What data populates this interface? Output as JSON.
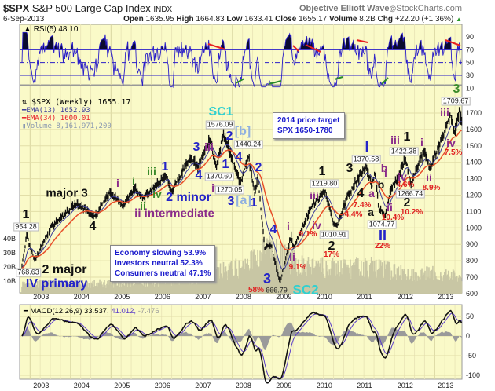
{
  "header": {
    "symbol": "$SPX",
    "name": "S&P 500 Large Cap Index",
    "exchange": "INDX",
    "brand": "Objective Elliott Wave",
    "brand_sep": "@",
    "site": "StockCharts.com",
    "date": "6-Sep-2013",
    "open_label": "Open",
    "open": "1635.95",
    "high_label": "High",
    "high": "1664.83",
    "low_label": "Low",
    "low": "1633.41",
    "close_label": "Close",
    "close": "1655.17",
    "volume_label": "Volume",
    "volume": "8.2B",
    "chg_label": "Chg",
    "chg": "+22.20 (+1.36%)",
    "chg_arrow": "▲"
  },
  "colors": {
    "panel_bg": "#fafac8",
    "price": "#111111",
    "ema13": "#3b3b9a",
    "ema34": "#e8502a",
    "rsi": "#2a1ec8",
    "volume": "#c8c6a4",
    "macd": "#111111",
    "signal": "#5a3cc8",
    "histogram": "#9a9a9a",
    "up": "#2a9a2a"
  },
  "chart_data": [
    {
      "type": "line",
      "panel": "RSI",
      "legend": "RSI(5) 48.10",
      "yticks": [
        90,
        70,
        50,
        30,
        10
      ],
      "ylim": [
        10,
        100
      ],
      "reference_lines": [
        70,
        50,
        30
      ]
    },
    {
      "type": "line",
      "panel": "price",
      "legend": {
        "price": "$SPX (Weekly) 1655.17",
        "ema13": "EMA(13) 1652.93",
        "ema34": "EMA(34) 1600.01",
        "volume": "Volume 8,161,971,200"
      },
      "yticks": [
        1700,
        1600,
        1500,
        1400,
        1300,
        1200,
        1100,
        1000,
        900,
        800,
        700,
        600
      ],
      "ylim": [
        600,
        1780
      ],
      "volume_ticks": [
        "40B",
        "30B",
        "20B",
        "10B"
      ],
      "xticks": [
        "2003",
        "2004",
        "2005",
        "2006",
        "2007",
        "2008",
        "2009",
        "2010",
        "2011",
        "2012",
        "2013"
      ],
      "price_pivots": [
        [
          2002.78,
          800
        ],
        [
          2002.8,
          768.63
        ],
        [
          2002.92,
          954.28
        ],
        [
          2003.0,
          880
        ],
        [
          2003.12,
          800
        ],
        [
          2003.5,
          1000
        ],
        [
          2003.9,
          1090
        ],
        [
          2004.15,
          1150
        ],
        [
          2004.6,
          1065
        ],
        [
          2004.95,
          1215
        ],
        [
          2005.3,
          1140
        ],
        [
          2005.6,
          1240
        ],
        [
          2005.8,
          1180
        ],
        [
          2006.35,
          1320
        ],
        [
          2006.5,
          1225
        ],
        [
          2006.95,
          1420
        ],
        [
          2007.15,
          1380
        ],
        [
          2007.45,
          1540
        ],
        [
          2007.6,
          1370.6
        ],
        [
          2007.78,
          1576.09
        ],
        [
          2008.2,
          1270.05
        ],
        [
          2008.4,
          1440.24
        ],
        [
          2008.55,
          1200
        ],
        [
          2008.63,
          1300
        ],
        [
          2008.8,
          880
        ],
        [
          2008.95,
          900
        ],
        [
          2009.18,
          666.79
        ],
        [
          2009.45,
          950
        ],
        [
          2009.52,
          880
        ],
        [
          2009.95,
          1130
        ],
        [
          2010.3,
          1219.8
        ],
        [
          2010.5,
          1030
        ],
        [
          2010.6,
          1010.91
        ],
        [
          2010.85,
          1200
        ],
        [
          2011.3,
          1370.58
        ],
        [
          2011.45,
          1260
        ],
        [
          2011.52,
          1340
        ],
        [
          2011.62,
          1120
        ],
        [
          2011.78,
          1074.77
        ],
        [
          2011.9,
          1230
        ],
        [
          2012.05,
          1290
        ],
        [
          2012.28,
          1422.38
        ],
        [
          2012.42,
          1266.74
        ],
        [
          2012.6,
          1400
        ],
        [
          2012.75,
          1470
        ],
        [
          2012.88,
          1360
        ],
        [
          2013.2,
          1560
        ],
        [
          2013.4,
          1690
        ],
        [
          2013.48,
          1570
        ],
        [
          2013.6,
          1709.67
        ],
        [
          2013.68,
          1655.17
        ]
      ],
      "volume_billions": [
        [
          2002.8,
          8
        ],
        [
          2003.5,
          8
        ],
        [
          2004.5,
          8
        ],
        [
          2005.5,
          9
        ],
        [
          2006.5,
          11
        ],
        [
          2007.3,
          13
        ],
        [
          2007.8,
          17
        ],
        [
          2008.3,
          20
        ],
        [
          2008.8,
          32
        ],
        [
          2009.3,
          26
        ],
        [
          2009.8,
          20
        ],
        [
          2010.5,
          19
        ],
        [
          2011.5,
          20
        ],
        [
          2012.3,
          15
        ],
        [
          2013.0,
          15
        ],
        [
          2013.68,
          13
        ]
      ],
      "annotations": [
        {
          "text": "1",
          "color": "black"
        },
        {
          "text": "954.28",
          "color": "value"
        },
        {
          "text": "major 3",
          "color": "black"
        },
        {
          "text": "4",
          "color": "black"
        },
        {
          "text": "2 major",
          "color": "black"
        },
        {
          "text": "IV primary",
          "color": "blue"
        },
        {
          "text": "768.63",
          "color": "value"
        },
        {
          "text": "i",
          "color": "purple"
        },
        {
          "text": "i",
          "color": "green"
        },
        {
          "text": "ii",
          "color": "green"
        },
        {
          "text": "iii",
          "color": "green"
        },
        {
          "text": "ii intermediate",
          "color": "purple"
        },
        {
          "text": "1",
          "color": "blue"
        },
        {
          "text": "iv",
          "color": "green"
        },
        {
          "text": "2 minor",
          "color": "blue"
        },
        {
          "text": "3",
          "color": "blue"
        },
        {
          "text": "iii",
          "color": "purple"
        },
        {
          "text": "4",
          "color": "blue"
        },
        {
          "text": "1370.60",
          "color": "value"
        },
        {
          "text": "iv",
          "color": "purple"
        },
        {
          "text": "SC1",
          "color": "cyan"
        },
        {
          "text": "1576.09",
          "color": "value"
        },
        {
          "text": "2",
          "color": "blue"
        },
        {
          "text": "[b]",
          "color": "lightblue"
        },
        {
          "text": "1440.24",
          "color": "value"
        },
        {
          "text": "4",
          "color": "blue"
        },
        {
          "text": "1",
          "color": "blue"
        },
        {
          "text": "1270.05",
          "color": "value"
        },
        {
          "text": "3",
          "color": "blue"
        },
        {
          "text": "[a]",
          "color": "lightblue"
        },
        {
          "text": "1",
          "color": "blue"
        },
        {
          "text": "2",
          "color": "blue"
        },
        {
          "text": "4",
          "color": "blue"
        },
        {
          "text": "i",
          "color": "purple"
        },
        {
          "text": "ii",
          "color": "purple"
        },
        {
          "text": "9.1%",
          "color": "red"
        },
        {
          "text": "3",
          "color": "blue"
        },
        {
          "text": "58%",
          "color": "red"
        },
        {
          "text": "666.79",
          "color": "plain"
        },
        {
          "text": "SC2",
          "color": "cyan"
        },
        {
          "text": "1",
          "color": "black"
        },
        {
          "text": "1219.80",
          "color": "value"
        },
        {
          "text": "iii",
          "color": "purple"
        },
        {
          "text": "iv",
          "color": "purple"
        },
        {
          "text": "9.1%",
          "color": "red"
        },
        {
          "text": "1010.91",
          "color": "value"
        },
        {
          "text": "2",
          "color": "black"
        },
        {
          "text": "17%",
          "color": "red"
        },
        {
          "text": "I",
          "color": "blue"
        },
        {
          "text": "1370.58",
          "color": "value"
        },
        {
          "text": "3",
          "color": "black"
        },
        {
          "text": "b",
          "color": "purple"
        },
        {
          "text": "4",
          "color": "black"
        },
        {
          "text": "a",
          "color": "purple"
        },
        {
          "text": "7.4%",
          "color": "red"
        },
        {
          "text": "4.4%",
          "color": "red"
        },
        {
          "text": "b",
          "color": "black"
        },
        {
          "text": "i",
          "color": "purple"
        },
        {
          "text": "a",
          "color": "black"
        },
        {
          "text": "1074.77",
          "color": "value"
        },
        {
          "text": "II",
          "color": "blue"
        },
        {
          "text": "22%",
          "color": "red"
        },
        {
          "text": "ii",
          "color": "purple"
        },
        {
          "text": "10.4%",
          "color": "red"
        },
        {
          "text": "iii",
          "color": "purple"
        },
        {
          "text": "1",
          "color": "black"
        },
        {
          "text": "1422.38",
          "color": "value"
        },
        {
          "text": "iv",
          "color": "purple"
        },
        {
          "text": "4.6%",
          "color": "red"
        },
        {
          "text": "1266.74",
          "color": "value"
        },
        {
          "text": "2",
          "color": "black"
        },
        {
          "text": "10.2%",
          "color": "red"
        },
        {
          "text": "i",
          "color": "purple"
        },
        {
          "text": "ii",
          "color": "purple"
        },
        {
          "text": "8.9%",
          "color": "red"
        },
        {
          "text": "iii",
          "color": "purple"
        },
        {
          "text": "1709.67",
          "color": "value"
        },
        {
          "text": "iv",
          "color": "purple"
        },
        {
          "text": "7.5%",
          "color": "red"
        },
        {
          "text": "3",
          "color": "green"
        }
      ]
    },
    {
      "type": "line",
      "panel": "MACD",
      "legend": {
        "macd": "MACD(12,26,9) 33.537,",
        "signal": "41.012,",
        "histogram": "-7.476"
      },
      "yticks": [
        50,
        0,
        -50,
        -100
      ],
      "xticks": [
        "2003",
        "2004",
        "2005",
        "2006",
        "2007",
        "2008",
        "2009",
        "2010",
        "2011",
        "2012",
        "2013"
      ]
    }
  ],
  "notes": {
    "target_line1": "2014 price target",
    "target_line2": "SPX 1650-1780",
    "sentiment": [
      "Economy slowing 53.9%",
      "Investors neutral 52.3%",
      "Consumers neutral 47.1%"
    ]
  }
}
